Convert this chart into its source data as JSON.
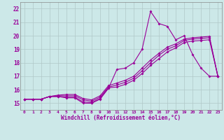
{
  "xlabel": "Windchill (Refroidissement éolien,°C)",
  "bg_color": "#cce8e8",
  "line_color": "#990099",
  "grid_color": "#b0c8c8",
  "x_labels": [
    "0",
    "1",
    "2",
    "3",
    "4",
    "5",
    "6",
    "7",
    "8",
    "9",
    "10",
    "11",
    "12",
    "13",
    "14",
    "15",
    "16",
    "17",
    "18",
    "19",
    "20",
    "21",
    "22",
    "23"
  ],
  "ylim": [
    14.5,
    22.5
  ],
  "xlim": [
    -0.5,
    23.5
  ],
  "yticks": [
    15,
    16,
    17,
    18,
    19,
    20,
    21,
    22
  ],
  "line1": [
    15.3,
    15.3,
    15.3,
    15.5,
    15.5,
    15.4,
    15.4,
    15.0,
    15.0,
    15.3,
    16.1,
    17.5,
    17.6,
    18.0,
    19.0,
    21.8,
    20.9,
    20.7,
    19.7,
    20.0,
    18.6,
    17.6,
    17.0,
    17.0
  ],
  "line2": [
    15.3,
    15.3,
    15.3,
    15.5,
    15.5,
    15.45,
    15.45,
    15.1,
    15.05,
    15.35,
    16.15,
    16.2,
    16.4,
    16.7,
    17.2,
    17.8,
    18.3,
    18.8,
    19.1,
    19.5,
    19.6,
    19.65,
    19.7,
    17.0
  ],
  "line3": [
    15.3,
    15.3,
    15.3,
    15.5,
    15.55,
    15.55,
    15.55,
    15.25,
    15.15,
    15.45,
    16.2,
    16.35,
    16.55,
    16.85,
    17.4,
    18.0,
    18.55,
    19.0,
    19.25,
    19.65,
    19.75,
    19.8,
    19.85,
    17.0
  ],
  "line4": [
    15.3,
    15.3,
    15.3,
    15.5,
    15.6,
    15.65,
    15.65,
    15.35,
    15.25,
    15.55,
    16.3,
    16.5,
    16.7,
    17.0,
    17.6,
    18.2,
    18.7,
    19.15,
    19.4,
    19.75,
    19.85,
    19.9,
    19.95,
    17.0
  ]
}
